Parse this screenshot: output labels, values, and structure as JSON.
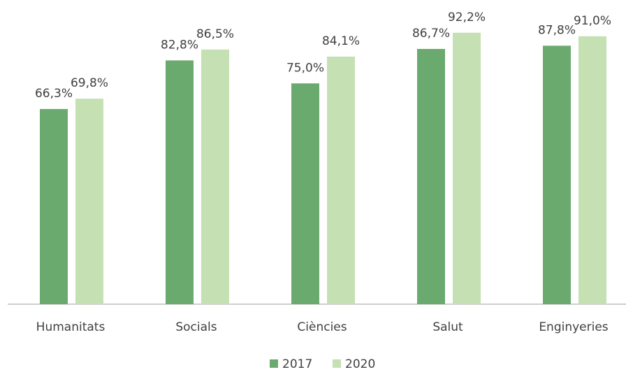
{
  "chart_data": {
    "type": "bar",
    "categories": [
      "Humanitats",
      "Socials",
      "Ciències",
      "Salut",
      "Enginyeries"
    ],
    "series": [
      {
        "name": "2017",
        "color": "#6aaa6e",
        "values": [
          66.3,
          82.8,
          75.0,
          86.7,
          87.8
        ],
        "value_labels": [
          "66,3%",
          "82,8%",
          "75,0%",
          "86,7%",
          "87,8%"
        ]
      },
      {
        "name": "2020",
        "color": "#c5e0b3",
        "values": [
          69.8,
          86.5,
          84.1,
          92.2,
          91.0
        ],
        "value_labels": [
          "69,8%",
          "86,5%",
          "84,1%",
          "92,2%",
          "91,0%"
        ]
      }
    ],
    "ylim": [
      0,
      100
    ],
    "legend": "bottom"
  }
}
